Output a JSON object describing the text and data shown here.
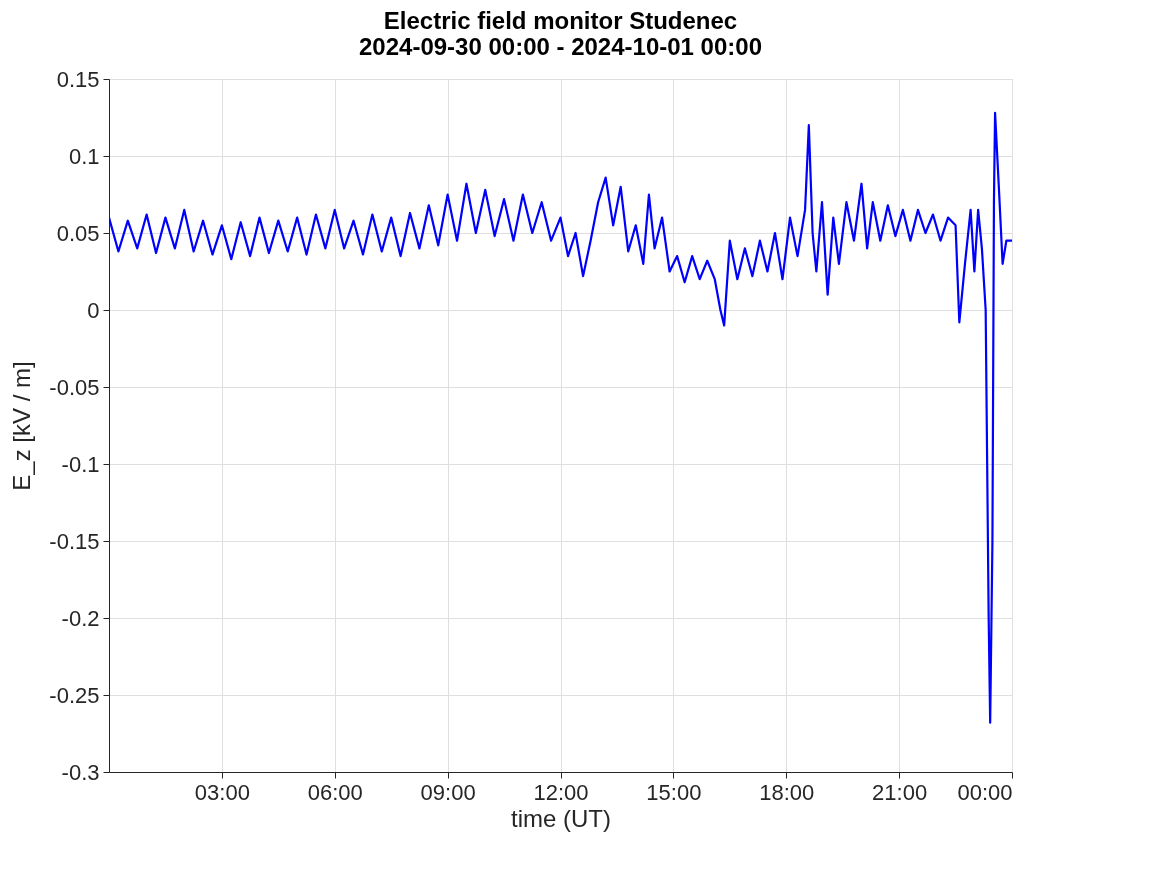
{
  "chart_data": {
    "type": "line",
    "title": [
      "Electric field monitor Studenec",
      "2024-09-30 00:00 - 2024-10-01 00:00"
    ],
    "xlabel": "time (UT)",
    "ylabel": "E_z [kV / m]",
    "xlim": [
      0,
      24
    ],
    "xticks": [
      {
        "value": 3,
        "label": "03:00"
      },
      {
        "value": 6,
        "label": "06:00"
      },
      {
        "value": 9,
        "label": "09:00"
      },
      {
        "value": 12,
        "label": "12:00"
      },
      {
        "value": 15,
        "label": "15:00"
      },
      {
        "value": 18,
        "label": "18:00"
      },
      {
        "value": 21,
        "label": "21:00"
      },
      {
        "value": 24,
        "label": "00:00"
      }
    ],
    "ylim": [
      -0.3,
      0.15
    ],
    "yticks": [
      -0.3,
      -0.25,
      -0.2,
      -0.15,
      -0.1,
      -0.05,
      0,
      0.05,
      0.1,
      0.15
    ],
    "grid": true,
    "line_style": "solid",
    "marker": "none",
    "series": [
      {
        "color": "#0000ff",
        "x": [
          0,
          0.25,
          0.5,
          0.75,
          1,
          1.25,
          1.5,
          1.75,
          2,
          2.25,
          2.5,
          2.75,
          3,
          3.25,
          3.5,
          3.75,
          4,
          4.25,
          4.5,
          4.75,
          5,
          5.25,
          5.5,
          5.75,
          6,
          6.25,
          6.5,
          6.75,
          7,
          7.25,
          7.5,
          7.75,
          8,
          8.25,
          8.5,
          8.75,
          9,
          9.25,
          9.5,
          9.75,
          10,
          10.25,
          10.5,
          10.75,
          11,
          11.25,
          11.5,
          11.75,
          12,
          12.2,
          12.4,
          12.6,
          12.8,
          13,
          13.2,
          13.4,
          13.6,
          13.8,
          14,
          14.2,
          14.35,
          14.5,
          14.7,
          14.9,
          15.1,
          15.3,
          15.5,
          15.7,
          15.9,
          16.1,
          16.25,
          16.35,
          16.5,
          16.7,
          16.9,
          17.1,
          17.3,
          17.5,
          17.7,
          17.9,
          18.1,
          18.3,
          18.5,
          18.6,
          18.7,
          18.8,
          18.95,
          19.1,
          19.25,
          19.4,
          19.6,
          19.8,
          20,
          20.15,
          20.3,
          20.5,
          20.7,
          20.9,
          21.1,
          21.3,
          21.5,
          21.7,
          21.9,
          22.1,
          22.3,
          22.5,
          22.6,
          22.75,
          22.9,
          23,
          23.1,
          23.2,
          23.3,
          23.38,
          23.42,
          23.48,
          23.52,
          23.55,
          23.65,
          23.75,
          23.85,
          24
        ],
        "values": [
          0.06,
          0.038,
          0.058,
          0.04,
          0.062,
          0.037,
          0.06,
          0.04,
          0.065,
          0.038,
          0.058,
          0.036,
          0.055,
          0.033,
          0.057,
          0.035,
          0.06,
          0.037,
          0.058,
          0.038,
          0.06,
          0.036,
          0.062,
          0.04,
          0.065,
          0.04,
          0.058,
          0.036,
          0.062,
          0.038,
          0.06,
          0.035,
          0.063,
          0.04,
          0.068,
          0.042,
          0.075,
          0.045,
          0.082,
          0.05,
          0.078,
          0.048,
          0.072,
          0.045,
          0.075,
          0.05,
          0.07,
          0.045,
          0.06,
          0.035,
          0.05,
          0.022,
          0.045,
          0.07,
          0.086,
          0.055,
          0.08,
          0.038,
          0.055,
          0.03,
          0.075,
          0.04,
          0.06,
          0.025,
          0.035,
          0.018,
          0.035,
          0.02,
          0.032,
          0.02,
          0.0,
          -0.01,
          0.045,
          0.02,
          0.04,
          0.022,
          0.045,
          0.025,
          0.05,
          0.02,
          0.06,
          0.035,
          0.065,
          0.12,
          0.05,
          0.025,
          0.07,
          0.01,
          0.06,
          0.03,
          0.07,
          0.045,
          0.082,
          0.04,
          0.07,
          0.045,
          0.068,
          0.048,
          0.065,
          0.045,
          0.065,
          0.05,
          0.062,
          0.045,
          0.06,
          0.055,
          -0.008,
          0.03,
          0.065,
          0.025,
          0.065,
          0.04,
          0.0,
          -0.2,
          -0.268,
          -0.15,
          0.07,
          0.128,
          0.08,
          0.03,
          0.045,
          0.045
        ]
      }
    ]
  }
}
